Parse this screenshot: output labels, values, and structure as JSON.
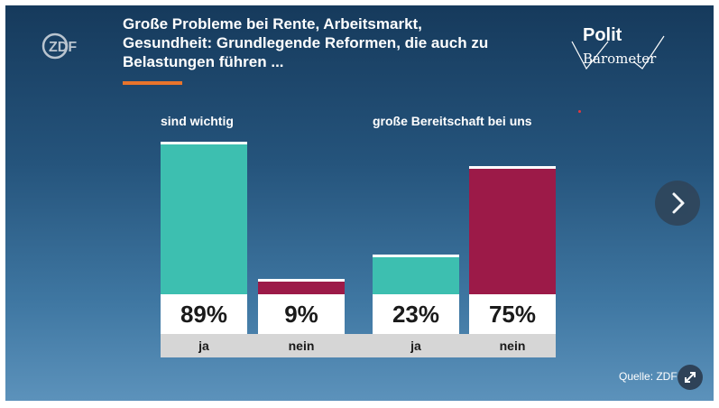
{
  "brand": {
    "logo_text": "ZDF"
  },
  "title_lines": [
    "Große Probleme bei Rente, Arbeitsmarkt,",
    "Gesundheit: Grundlegende Reformen, die auch zu",
    "Belastungen führen ..."
  ],
  "politbarometer": {
    "line1": "Polit",
    "line2": "Barometer"
  },
  "colors": {
    "ja": "#3dbfb0",
    "nein": "#9c1a48",
    "accent": "#e8742c"
  },
  "chart_data": {
    "type": "bar",
    "ylim": [
      0,
      100
    ],
    "groups": [
      {
        "label": "sind wichtig",
        "bars": [
          {
            "category": "ja",
            "value": 89,
            "value_label": "89%"
          },
          {
            "category": "nein",
            "value": 9,
            "value_label": "9%"
          }
        ]
      },
      {
        "label": "große Bereitschaft bei uns",
        "bars": [
          {
            "category": "ja",
            "value": 23,
            "value_label": "23%"
          },
          {
            "category": "nein",
            "value": 75,
            "value_label": "75%"
          }
        ]
      }
    ]
  },
  "source": "Quelle: ZDF",
  "controls": {
    "next_icon": "chevron-right-icon",
    "expand_icon": "expand-icon"
  }
}
